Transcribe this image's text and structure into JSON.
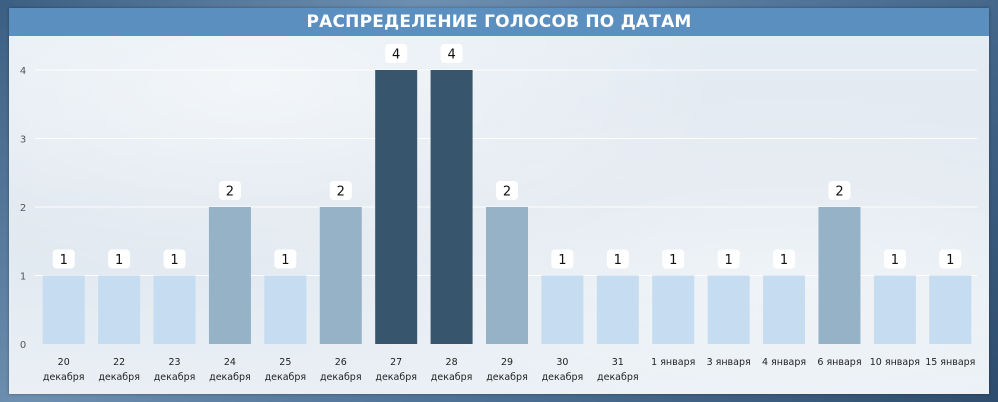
{
  "chart_data": {
    "type": "bar",
    "title": "РАСПРЕДЕЛЕНИЕ ГОЛОСОВ ПО ДАТАМ",
    "xlabel": "",
    "ylabel": "",
    "ylim": [
      0,
      4
    ],
    "yticks": [
      "0",
      "1",
      "2",
      "3",
      "4"
    ],
    "grid": true,
    "categories": [
      [
        "20",
        "декабря"
      ],
      [
        "22",
        "декабря"
      ],
      [
        "23",
        "декабря"
      ],
      [
        "24",
        "декабря"
      ],
      [
        "25",
        "декабря"
      ],
      [
        "26",
        "декабря"
      ],
      [
        "27",
        "декабря"
      ],
      [
        "28",
        "декабря"
      ],
      [
        "29",
        "декабря"
      ],
      [
        "30",
        "декабря"
      ],
      [
        "31",
        "декабря"
      ],
      [
        "1 января"
      ],
      [
        "3 января"
      ],
      [
        "4 января"
      ],
      [
        "6 января"
      ],
      [
        "10 января"
      ],
      [
        "15 января"
      ]
    ],
    "values": [
      1,
      1,
      1,
      2,
      1,
      2,
      4,
      4,
      2,
      1,
      1,
      1,
      1,
      1,
      2,
      1,
      1
    ],
    "colors": {
      "1": "#c5dcf1",
      "2": "#96b2c7",
      "4": "#37566d"
    }
  }
}
